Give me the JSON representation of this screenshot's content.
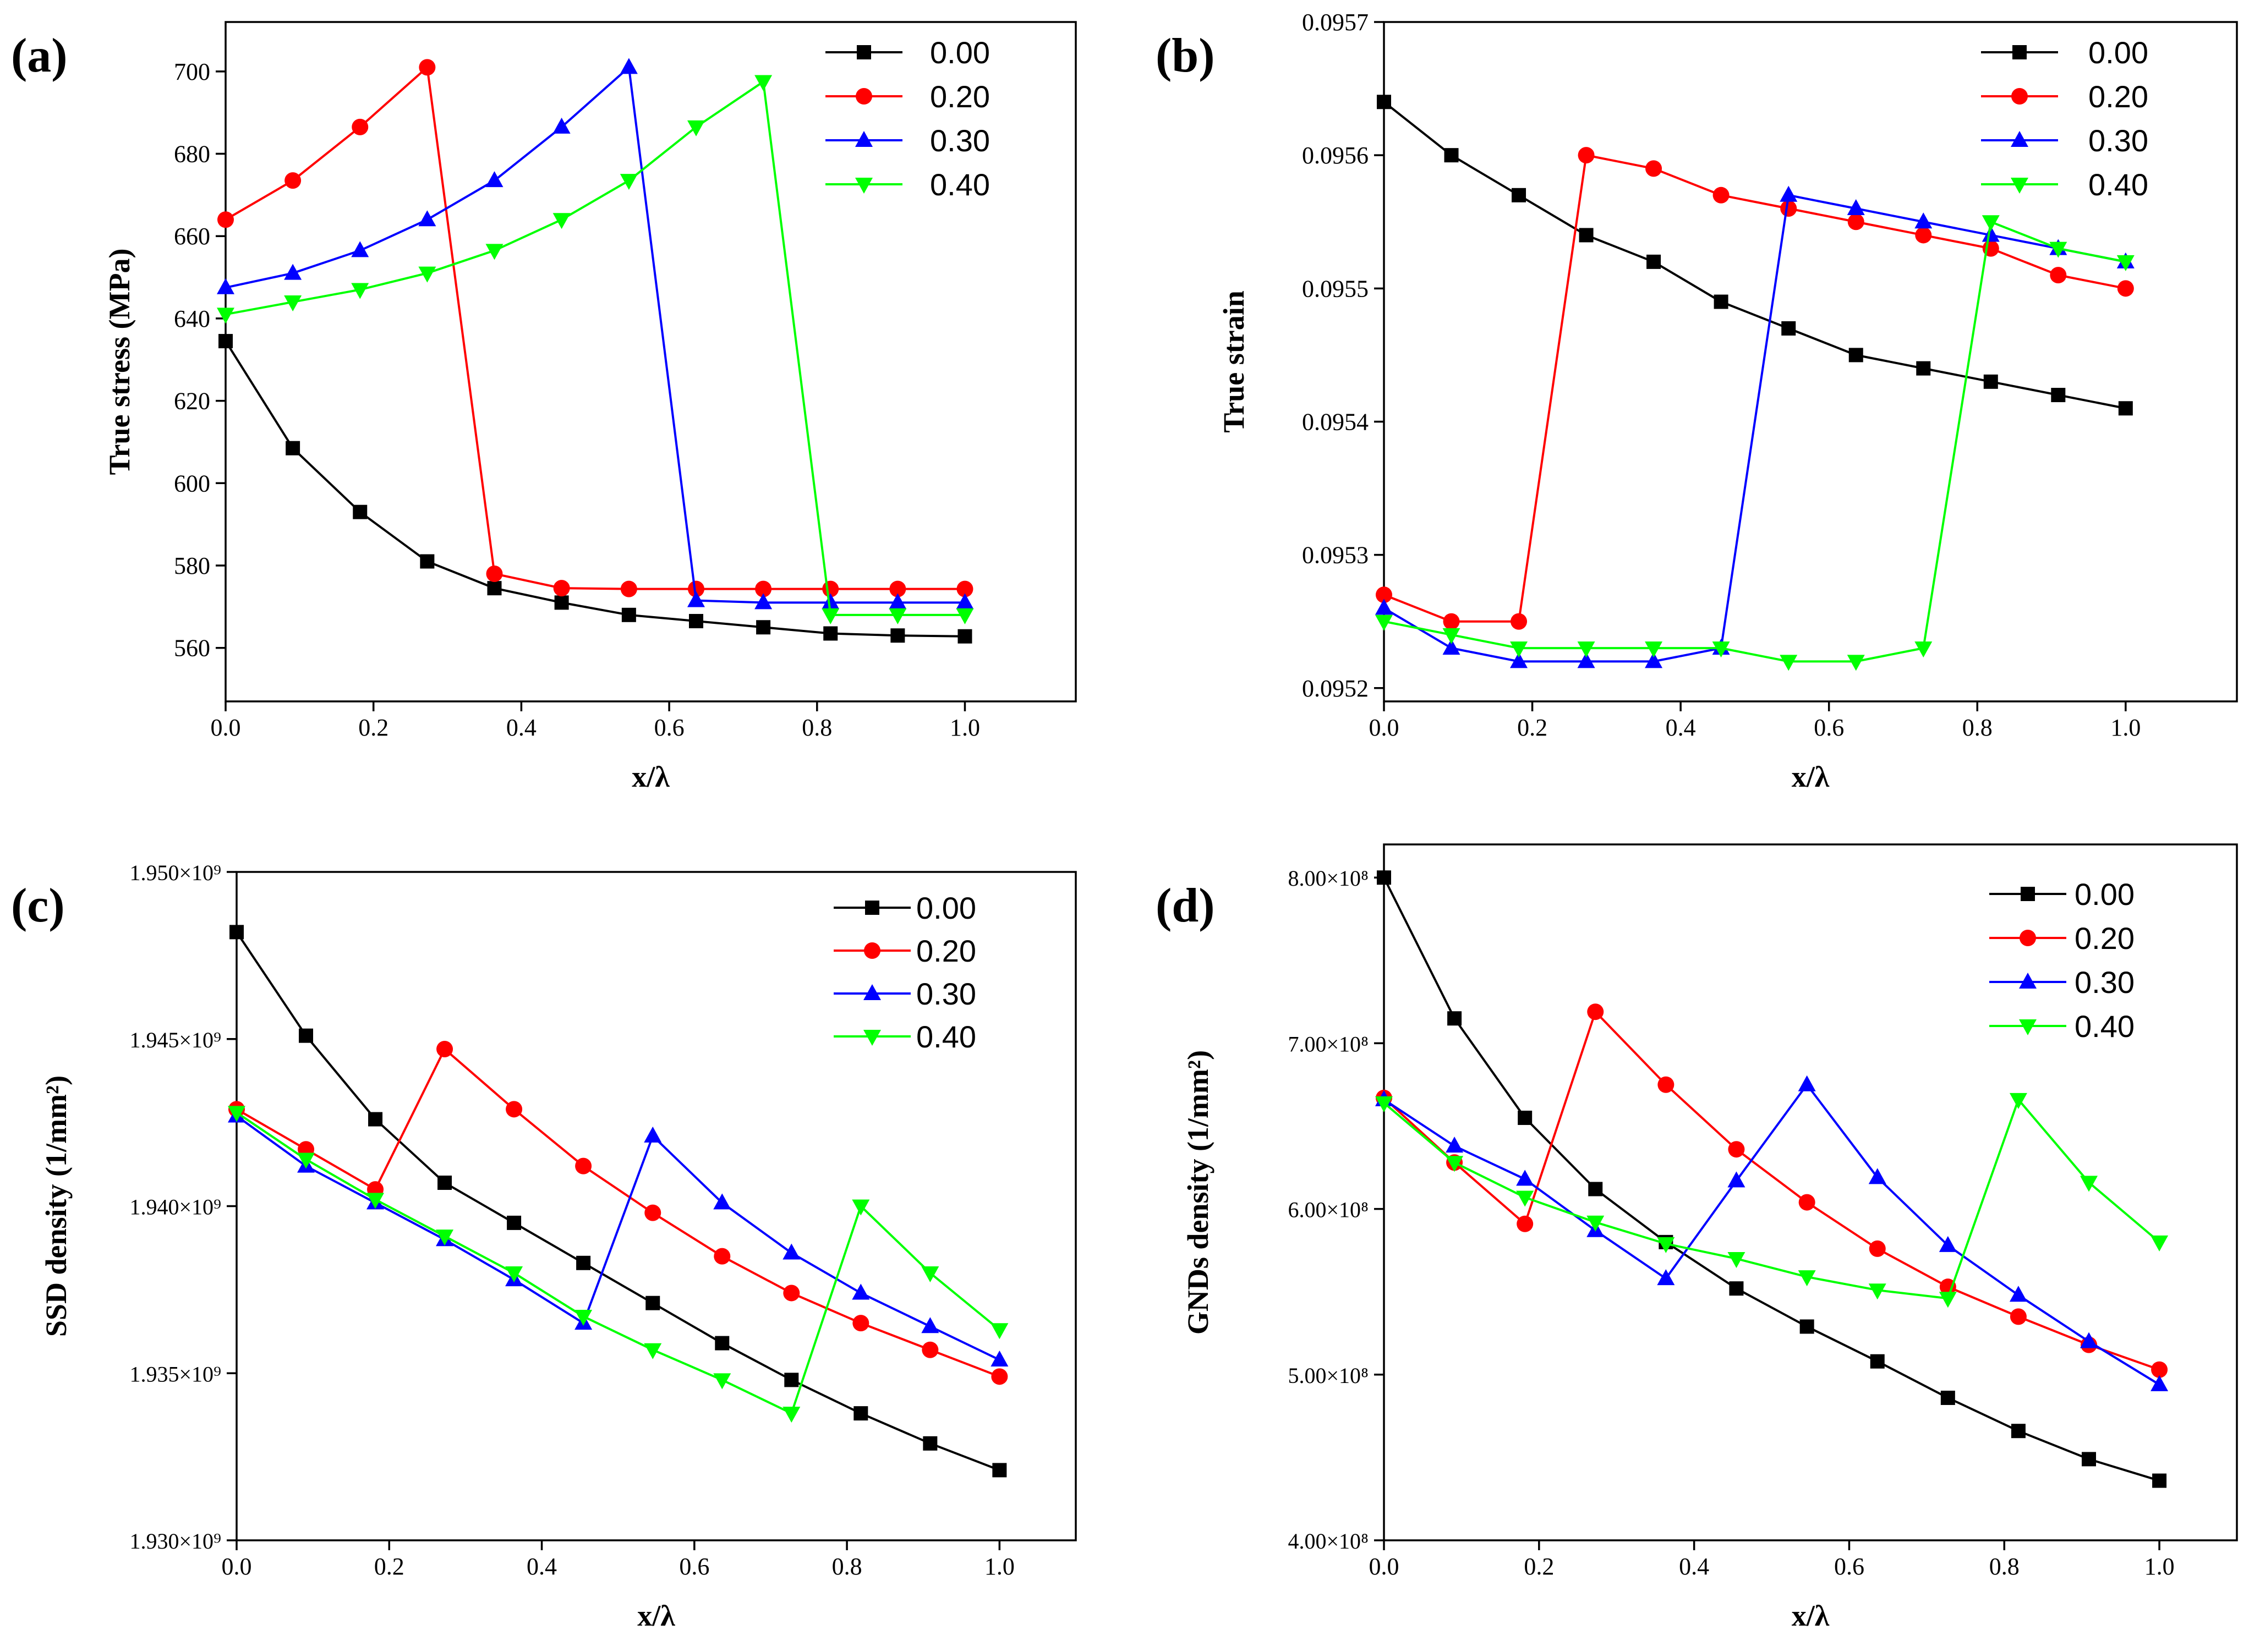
{
  "legend_labels": [
    "0.00",
    "0.20",
    "0.30",
    "0.40"
  ],
  "series_colors": [
    "#000000",
    "#ff0000",
    "#0000ff",
    "#00ff00"
  ],
  "series_markers": [
    "square",
    "circle",
    "triangle-up",
    "triangle-down"
  ],
  "chart_data": [
    {
      "type": "line",
      "panel_label": "(a)",
      "xlabel": "x/λ",
      "ylabel": "True stress (MPa)",
      "xlim": [
        0,
        1.15
      ],
      "ylim": [
        547,
        712
      ],
      "xticks": [
        {
          "value": 0.0,
          "label": "0.0"
        },
        {
          "value": 0.2,
          "label": "0.2"
        },
        {
          "value": 0.4,
          "label": "0.4"
        },
        {
          "value": 0.6,
          "label": "0.6"
        },
        {
          "value": 0.8,
          "label": "0.8"
        },
        {
          "value": 1.0,
          "label": "1.0"
        }
      ],
      "yticks": [
        {
          "value": 560,
          "label": "560"
        },
        {
          "value": 580,
          "label": "580"
        },
        {
          "value": 600,
          "label": "600"
        },
        {
          "value": 620,
          "label": "620"
        },
        {
          "value": 640,
          "label": "640"
        },
        {
          "value": 660,
          "label": "660"
        },
        {
          "value": 680,
          "label": "680"
        },
        {
          "value": 700,
          "label": "700"
        }
      ],
      "legend_position": "top-right",
      "x": [
        0,
        0.0909,
        0.1818,
        0.2727,
        0.3636,
        0.4545,
        0.5455,
        0.6364,
        0.7273,
        0.8182,
        0.9091,
        1.0
      ],
      "series": [
        {
          "name": "0.00",
          "values": [
            634.5,
            608.5,
            593,
            581,
            574.5,
            571,
            568,
            566.5,
            565,
            563.5,
            563,
            562.8
          ]
        },
        {
          "name": "0.20",
          "values": [
            664,
            673.5,
            686.5,
            701,
            578,
            574.5,
            574.3,
            574.3,
            574.3,
            574.3,
            574.3,
            574.3
          ]
        },
        {
          "name": "0.30",
          "values": [
            647.5,
            651,
            656.5,
            664,
            673.5,
            686.5,
            701,
            571.5,
            571,
            571,
            571,
            571
          ]
        },
        {
          "name": "0.40",
          "values": [
            641,
            644,
            647,
            651,
            656.5,
            664,
            673.5,
            686.5,
            697.5,
            568,
            568,
            568
          ]
        }
      ]
    },
    {
      "type": "line",
      "panel_label": "(b)",
      "xlabel": "x/λ",
      "ylabel": "True strain",
      "xlim": [
        0,
        1.15
      ],
      "ylim": [
        0.09519,
        0.0957
      ],
      "xticks": [
        {
          "value": 0.0,
          "label": "0.0"
        },
        {
          "value": 0.2,
          "label": "0.2"
        },
        {
          "value": 0.4,
          "label": "0.4"
        },
        {
          "value": 0.6,
          "label": "0.6"
        },
        {
          "value": 0.8,
          "label": "0.8"
        },
        {
          "value": 1.0,
          "label": "1.0"
        }
      ],
      "yticks": [
        {
          "value": 0.0952,
          "label": "0.0952"
        },
        {
          "value": 0.0953,
          "label": "0.0953"
        },
        {
          "value": 0.0954,
          "label": "0.0954"
        },
        {
          "value": 0.0955,
          "label": "0.0955"
        },
        {
          "value": 0.0956,
          "label": "0.0956"
        },
        {
          "value": 0.0957,
          "label": "0.0957"
        }
      ],
      "legend_position": "top-right",
      "x": [
        0,
        0.0909,
        0.1818,
        0.2727,
        0.3636,
        0.4545,
        0.5455,
        0.6364,
        0.7273,
        0.8182,
        0.9091,
        1.0
      ],
      "series": [
        {
          "name": "0.00",
          "values": [
            0.09564,
            0.0956,
            0.09557,
            0.09554,
            0.09552,
            0.09549,
            0.09547,
            0.09545,
            0.09544,
            0.09543,
            0.09542,
            0.09541
          ]
        },
        {
          "name": "0.20",
          "values": [
            0.09527,
            0.09525,
            0.09525,
            0.0956,
            0.09559,
            0.09557,
            0.09556,
            0.09555,
            0.09554,
            0.09553,
            0.09551,
            0.0955
          ]
        },
        {
          "name": "0.30",
          "values": [
            0.09526,
            0.09523,
            0.09522,
            0.09522,
            0.09522,
            0.09523,
            0.09557,
            0.09556,
            0.09555,
            0.09554,
            0.09553,
            0.09552
          ]
        },
        {
          "name": "0.40",
          "values": [
            0.09525,
            0.09524,
            0.09523,
            0.09523,
            0.09523,
            0.09523,
            0.09522,
            0.09522,
            0.09523,
            0.09555,
            0.09553,
            0.09552
          ]
        }
      ]
    },
    {
      "type": "line",
      "panel_label": "(c)",
      "xlabel": "x/λ",
      "ylabel": "SSD density (1/mm²)",
      "xlim": [
        0,
        1.1
      ],
      "ylim": [
        1930000000.0,
        1950000000.0
      ],
      "xticks": [
        {
          "value": 0.0,
          "label": "0.0"
        },
        {
          "value": 0.2,
          "label": "0.2"
        },
        {
          "value": 0.4,
          "label": "0.4"
        },
        {
          "value": 0.6,
          "label": "0.6"
        },
        {
          "value": 0.8,
          "label": "0.8"
        },
        {
          "value": 1.0,
          "label": "1.0"
        }
      ],
      "yticks": [
        {
          "value": 1930000000.0,
          "label": "1.930×10⁹"
        },
        {
          "value": 1935000000.0,
          "label": "1.935×10⁹"
        },
        {
          "value": 1940000000.0,
          "label": "1.940×10⁹"
        },
        {
          "value": 1945000000.0,
          "label": "1.945×10⁹"
        },
        {
          "value": 1950000000.0,
          "label": "1.950×10⁹"
        }
      ],
      "legend_position": "top-right",
      "x": [
        0,
        0.0909,
        0.1818,
        0.2727,
        0.3636,
        0.4545,
        0.5455,
        0.6364,
        0.7273,
        0.8182,
        0.9091,
        1.0
      ],
      "series": [
        {
          "name": "0.00",
          "values": [
            1948200000.0,
            1945100000.0,
            1942600000.0,
            1940700000.0,
            1939500000.0,
            1938300000.0,
            1937100000.0,
            1935900000.0,
            1934800000.0,
            1933800000.0,
            1932900000.0,
            1932100000.0
          ]
        },
        {
          "name": "0.20",
          "values": [
            1942900000.0,
            1941700000.0,
            1940500000.0,
            1944700000.0,
            1942900000.0,
            1941200000.0,
            1939800000.0,
            1938500000.0,
            1937400000.0,
            1936500000.0,
            1935700000.0,
            1934900000.0
          ]
        },
        {
          "name": "0.30",
          "values": [
            1942700000.0,
            1941200000.0,
            1940100000.0,
            1939000000.0,
            1937800000.0,
            1936500000.0,
            1942100000.0,
            1940100000.0,
            1938600000.0,
            1937400000.0,
            1936400000.0,
            1935400000.0
          ]
        },
        {
          "name": "0.40",
          "values": [
            1942800000.0,
            1941400000.0,
            1940200000.0,
            1939100000.0,
            1938000000.0,
            1936700000.0,
            1935700000.0,
            1934800000.0,
            1933800000.0,
            1940000000.0,
            1938000000.0,
            1936300000.0
          ]
        }
      ]
    },
    {
      "type": "line",
      "panel_label": "(d)",
      "xlabel": "x/λ",
      "ylabel": "GNDs density (1/mm²)",
      "xlim": [
        0,
        1.1
      ],
      "ylim": [
        400000000.0,
        820000000.0
      ],
      "xticks": [
        {
          "value": 0.0,
          "label": "0.0"
        },
        {
          "value": 0.2,
          "label": "0.2"
        },
        {
          "value": 0.4,
          "label": "0.4"
        },
        {
          "value": 0.6,
          "label": "0.6"
        },
        {
          "value": 0.8,
          "label": "0.8"
        },
        {
          "value": 1.0,
          "label": "1.0"
        }
      ],
      "yticks": [
        {
          "value": 400000000.0,
          "label": "4.00×10⁸"
        },
        {
          "value": 500000000.0,
          "label": "5.00×10⁸"
        },
        {
          "value": 600000000.0,
          "label": "6.00×10⁸"
        },
        {
          "value": 700000000.0,
          "label": "7.00×10⁸"
        },
        {
          "value": 800000000.0,
          "label": "8.00×10⁸"
        }
      ],
      "legend_position": "top-right",
      "x": [
        0,
        0.0909,
        0.1818,
        0.2727,
        0.3636,
        0.4545,
        0.5455,
        0.6364,
        0.7273,
        0.8182,
        0.9091,
        1.0
      ],
      "series": [
        {
          "name": "0.00",
          "values": [
            800000000.0,
            715000000.0,
            655000000.0,
            612000000.0,
            580000000.0,
            552000000.0,
            529000000.0,
            508000000.0,
            486000000.0,
            466000000.0,
            449000000.0,
            436000000.0
          ]
        },
        {
          "name": "0.20",
          "values": [
            667000000.0,
            628000000.0,
            591000000.0,
            719000000.0,
            675000000.0,
            636000000.0,
            604000000.0,
            576000000.0,
            553000000.0,
            535000000.0,
            518000000.0,
            503000000.0
          ]
        },
        {
          "name": "0.30",
          "values": [
            666000000.0,
            638000000.0,
            618000000.0,
            587000000.0,
            558000000.0,
            617000000.0,
            675000000.0,
            619000000.0,
            578000000.0,
            548000000.0,
            520000000.0,
            494000000.0
          ]
        },
        {
          "name": "0.40",
          "values": [
            664000000.0,
            628000000.0,
            607000000.0,
            592000000.0,
            579000000.0,
            570000000.0,
            559000000.0,
            551000000.0,
            546000000.0,
            666000000.0,
            616000000.0,
            580000000.0
          ]
        }
      ]
    }
  ]
}
